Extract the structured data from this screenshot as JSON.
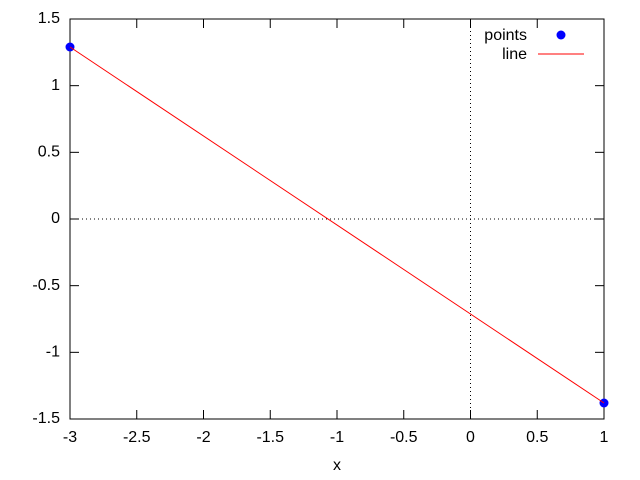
{
  "chart_data": {
    "type": "line",
    "xlabel": "x",
    "x": [
      -3,
      1
    ],
    "series": [
      {
        "name": "points",
        "type": "scatter",
        "color": "#0000ff",
        "values": [
          1.29,
          -1.38
        ]
      },
      {
        "name": "line",
        "type": "line",
        "color": "#ff0000",
        "values": [
          1.29,
          -1.38
        ]
      }
    ],
    "xlim": [
      -3,
      1
    ],
    "xticks": [
      -3,
      -2.5,
      -2,
      -1.5,
      -1,
      -0.5,
      0,
      0.5,
      1
    ],
    "ylim": [
      -1.5,
      1.5
    ],
    "yticks": [
      -1.5,
      -1,
      -0.5,
      0,
      0.5,
      1,
      1.5
    ],
    "zero_axes": true,
    "legend": "top-right"
  }
}
